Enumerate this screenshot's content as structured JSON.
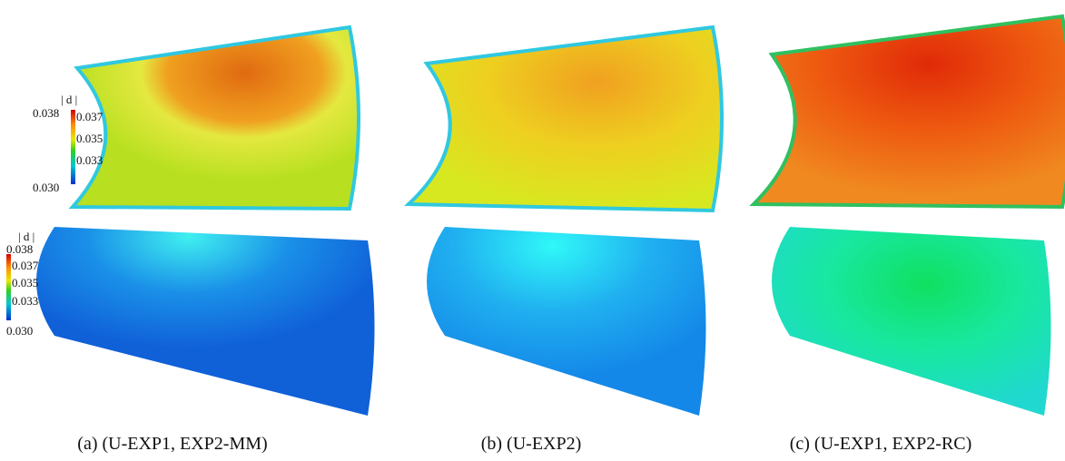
{
  "colorbars": [
    {
      "title": "| d |",
      "ticks": [
        "0.038",
        "0.037",
        "0.035",
        "0.033",
        "0.030"
      ]
    },
    {
      "title": "| d |",
      "ticks": [
        "0.038",
        "0.037",
        "0.035",
        "0.033",
        "0.030"
      ]
    }
  ],
  "captions": [
    "(a) (U-EXP1, EXP2-MM)",
    "(b) (U-EXP2)",
    "(c) (U-EXP1, EXP2-RC)"
  ]
}
